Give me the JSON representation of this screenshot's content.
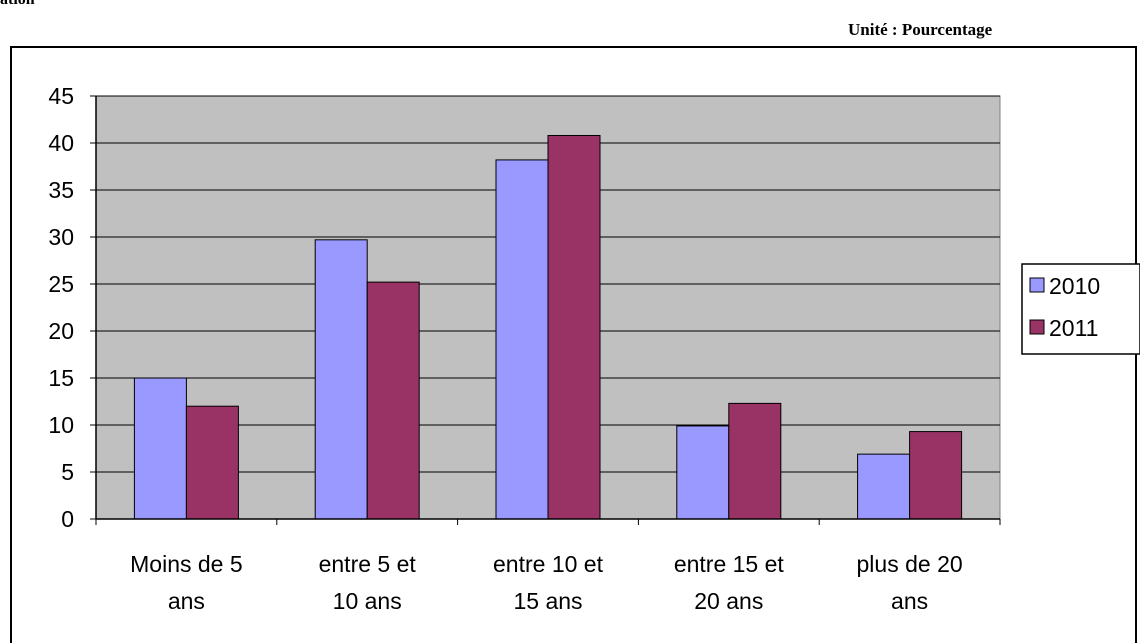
{
  "page": {
    "top_fragment": "ation",
    "unit_label": "Unité : Pourcentage"
  },
  "chart_data": {
    "type": "bar",
    "categories": [
      [
        "Moins de 5",
        "ans"
      ],
      [
        "entre 5 et",
        "10 ans"
      ],
      [
        "entre 10 et",
        "15 ans"
      ],
      [
        "entre 15 et",
        "20 ans"
      ],
      [
        "plus de 20",
        "ans"
      ]
    ],
    "series": [
      {
        "name": "2010",
        "values": [
          15,
          29.7,
          38.2,
          9.9,
          6.9
        ],
        "color": "#9999ff"
      },
      {
        "name": "2011",
        "values": [
          12,
          25.2,
          40.8,
          12.3,
          9.3
        ],
        "color": "#993366"
      }
    ],
    "ylim": [
      0,
      45
    ],
    "yticks": [
      "0",
      "5",
      "10",
      "15",
      "20",
      "25",
      "30",
      "35",
      "40",
      "45"
    ],
    "grid": true,
    "plot_background": "#c0c0c0",
    "legend_position": "right"
  }
}
